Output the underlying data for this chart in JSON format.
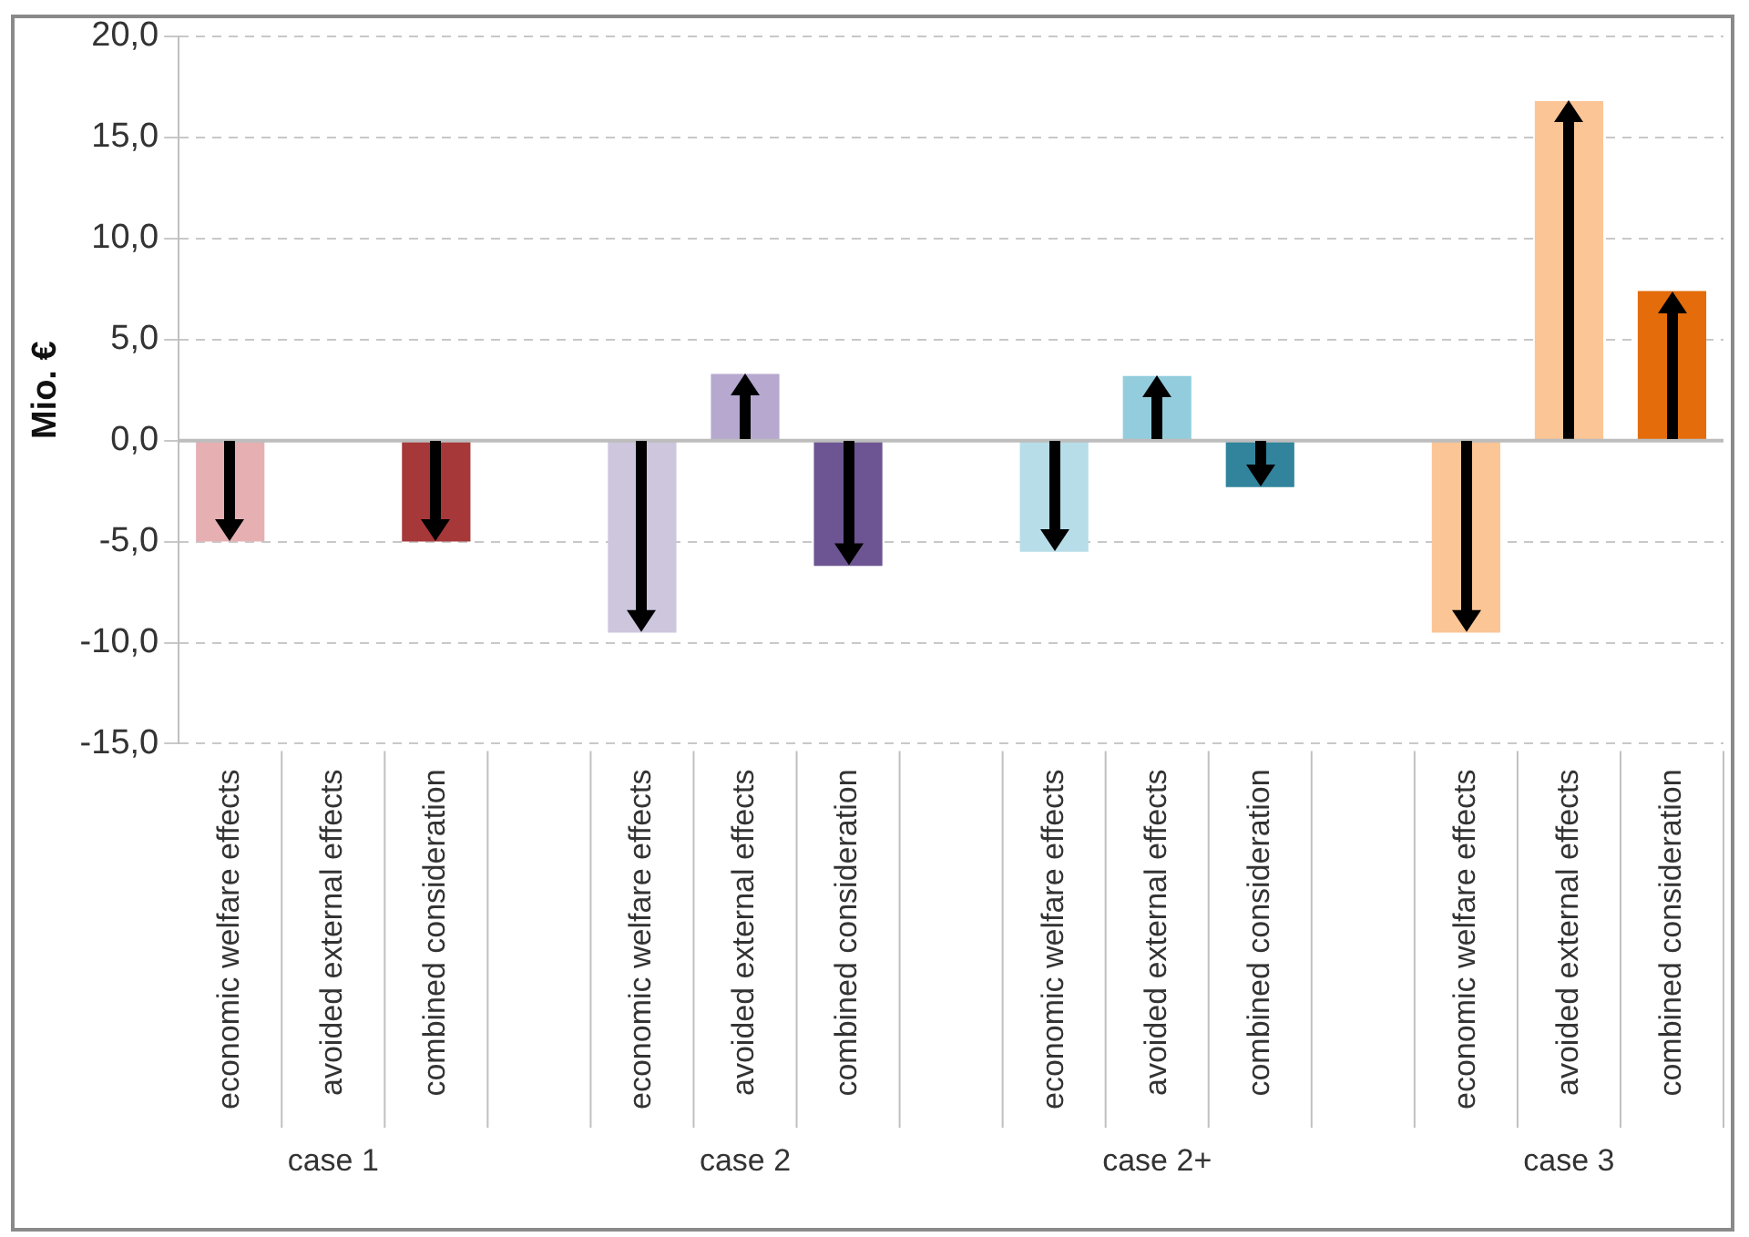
{
  "chart_data": {
    "type": "bar",
    "ylabel": "Mio. €",
    "categories": [
      "economic welfare effects",
      "avoided external effects",
      "combined consideration",
      null,
      "economic welfare effects",
      "avoided external effects",
      "combined consideration",
      null,
      "economic welfare effects",
      "avoided external effects",
      "combined consideration",
      null,
      "economic welfare effects",
      "avoided external effects",
      "combined consideration"
    ],
    "values": [
      -5.0,
      0,
      -5.0,
      null,
      -9.5,
      3.3,
      -6.2,
      null,
      -5.5,
      3.2,
      -2.3,
      null,
      -9.5,
      16.8,
      7.4
    ],
    "colors": [
      "#e6b0b3",
      "#e6b0b3",
      "#a6383a",
      "#ffffff",
      "#cdc6dd",
      "#b7a8d0",
      "#6c5592",
      "#ffffff",
      "#b7dde8",
      "#93cddd",
      "#31849b",
      "#ffffff",
      "#fbc596",
      "#fbc596",
      "#e46c0a"
    ],
    "ylim": [
      -15,
      20
    ],
    "yticks": [
      {
        "value": -15,
        "label": "-15,0"
      },
      {
        "value": -10,
        "label": "-10,0"
      },
      {
        "value": -5,
        "label": "-5,0"
      },
      {
        "value": 0,
        "label": "0,0"
      },
      {
        "value": 5,
        "label": "5,0"
      },
      {
        "value": 10,
        "label": "10,0"
      },
      {
        "value": 15,
        "label": "15,0"
      },
      {
        "value": 20,
        "label": "20,0"
      }
    ],
    "grid": "y",
    "legend": false,
    "annotations": [
      "case 1",
      "case 2",
      "case 2+",
      "case 3"
    ]
  }
}
